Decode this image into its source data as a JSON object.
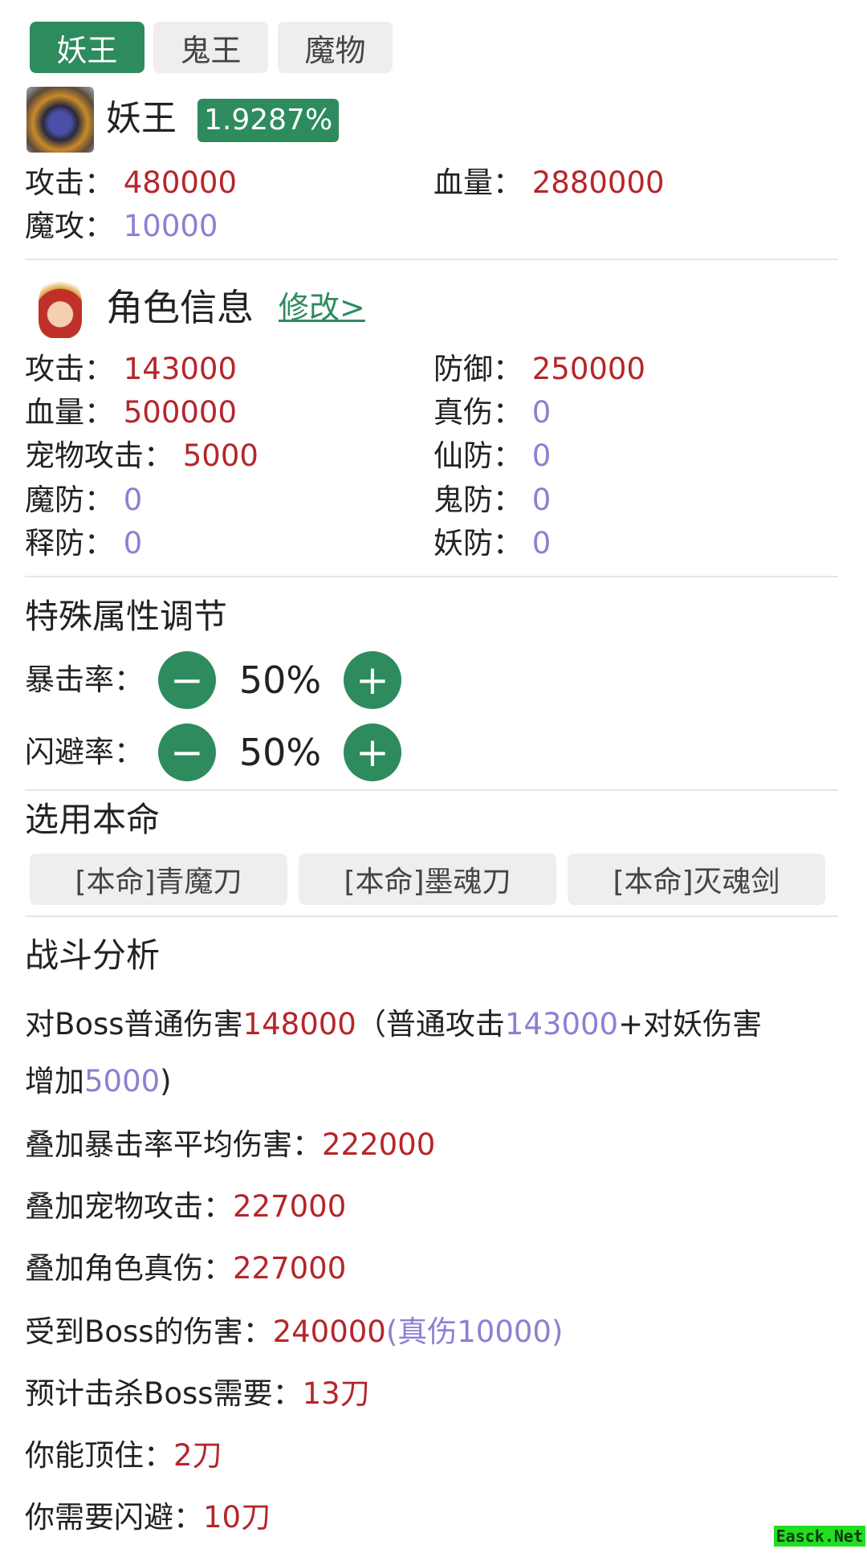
{
  "tabs": [
    {
      "label": "妖王",
      "active": true
    },
    {
      "label": "鬼王",
      "active": false
    },
    {
      "label": "魔物",
      "active": false
    }
  ],
  "boss": {
    "name": "妖王",
    "badge": "1.9287%",
    "stats": {
      "attack_label": "攻击：",
      "attack": "480000",
      "hp_label": "血量：",
      "hp": "2880000",
      "magic_label": "魔攻：",
      "magic": "10000"
    }
  },
  "role": {
    "title": "角色信息",
    "edit_link": "修改>",
    "stats": [
      {
        "label": "攻击：",
        "value": "143000",
        "color": "red"
      },
      {
        "label": "防御：",
        "value": "250000",
        "color": "red"
      },
      {
        "label": "血量：",
        "value": "500000",
        "color": "red"
      },
      {
        "label": "真伤：",
        "value": "0",
        "color": "purple"
      },
      {
        "label": "宠物攻击：",
        "value": "5000",
        "color": "red"
      },
      {
        "label": "仙防：",
        "value": "0",
        "color": "purple"
      },
      {
        "label": "魔防：",
        "value": "0",
        "color": "purple"
      },
      {
        "label": "鬼防：",
        "value": "0",
        "color": "purple"
      },
      {
        "label": "释防：",
        "value": "0",
        "color": "purple"
      },
      {
        "label": "妖防：",
        "value": "0",
        "color": "purple"
      }
    ]
  },
  "special": {
    "title": "特殊属性调节",
    "crit_label": "暴击率：",
    "crit_value": "50%",
    "dodge_label": "闪避率：",
    "dodge_value": "50%",
    "minus": "−",
    "plus": "+"
  },
  "weapons": {
    "title": "选用本命",
    "options": [
      "[本命]青魔刀",
      "[本命]墨魂刀",
      "[本命]灭魂剑"
    ]
  },
  "analysis": {
    "title": "战斗分析",
    "l1": {
      "a": "对Boss普通伤害",
      "b": "148000",
      "c": "（普通攻击",
      "d": "143000",
      "e": "+对妖伤害"
    },
    "l2": {
      "a": "增加",
      "b": "5000",
      "c": ")"
    },
    "l3": {
      "a": "叠加暴击率平均伤害：",
      "b": "222000"
    },
    "l4": {
      "a": "叠加宠物攻击：",
      "b": "227000"
    },
    "l5": {
      "a": "叠加角色真伤：",
      "b": "227000"
    },
    "l6": {
      "a": "受到Boss的伤害：",
      "b": "240000",
      "c": "(真伤10000)"
    },
    "l7": {
      "a": "预计击杀Boss需要：",
      "b": "13刀"
    },
    "l8": {
      "a": "你能顶住：",
      "b": "2刀"
    },
    "l9": {
      "a": "你需要闪避：",
      "b": "10刀"
    }
  },
  "watermark": "Easck.Net",
  "colors": {
    "green": "#2e8b5e",
    "red": "#b5262a",
    "purple": "#8d80d2"
  }
}
